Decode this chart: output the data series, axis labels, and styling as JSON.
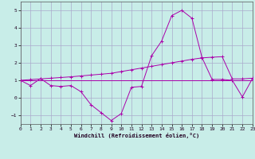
{
  "xlabel": "Windchill (Refroidissement éolien,°C)",
  "xlim": [
    0,
    23
  ],
  "ylim": [
    -1.5,
    5.5
  ],
  "yticks": [
    -1,
    0,
    1,
    2,
    3,
    4,
    5
  ],
  "xticks": [
    0,
    1,
    2,
    3,
    4,
    5,
    6,
    7,
    8,
    9,
    10,
    11,
    12,
    13,
    14,
    15,
    16,
    17,
    18,
    19,
    20,
    21,
    22,
    23
  ],
  "background_color": "#c8ede8",
  "line_color": "#aa00aa",
  "grid_color": "#aaaacc",
  "line1_x": [
    0,
    1,
    2,
    3,
    4,
    5,
    6,
    7,
    8,
    9,
    10,
    11,
    12,
    13,
    14,
    15,
    16,
    17,
    18,
    19,
    20,
    21,
    22,
    23
  ],
  "line1_y": [
    1.0,
    0.7,
    1.1,
    0.7,
    0.65,
    0.7,
    0.35,
    -0.4,
    -0.85,
    -1.3,
    -0.9,
    0.6,
    0.65,
    2.4,
    3.25,
    4.7,
    5.0,
    4.55,
    2.3,
    1.05,
    1.05,
    1.0,
    0.05,
    1.1
  ],
  "line2_x": [
    0,
    23
  ],
  "line2_y": [
    1.0,
    1.0
  ],
  "line3_x": [
    0,
    1,
    2,
    3,
    4,
    5,
    6,
    7,
    8,
    9,
    10,
    11,
    12,
    13,
    14,
    15,
    16,
    17,
    18,
    19,
    20,
    21,
    22,
    23
  ],
  "line3_y": [
    1.0,
    1.04,
    1.08,
    1.12,
    1.16,
    1.2,
    1.25,
    1.3,
    1.35,
    1.4,
    1.5,
    1.6,
    1.7,
    1.8,
    1.9,
    2.0,
    2.1,
    2.2,
    2.28,
    2.32,
    2.35,
    1.08,
    1.08,
    1.12
  ]
}
